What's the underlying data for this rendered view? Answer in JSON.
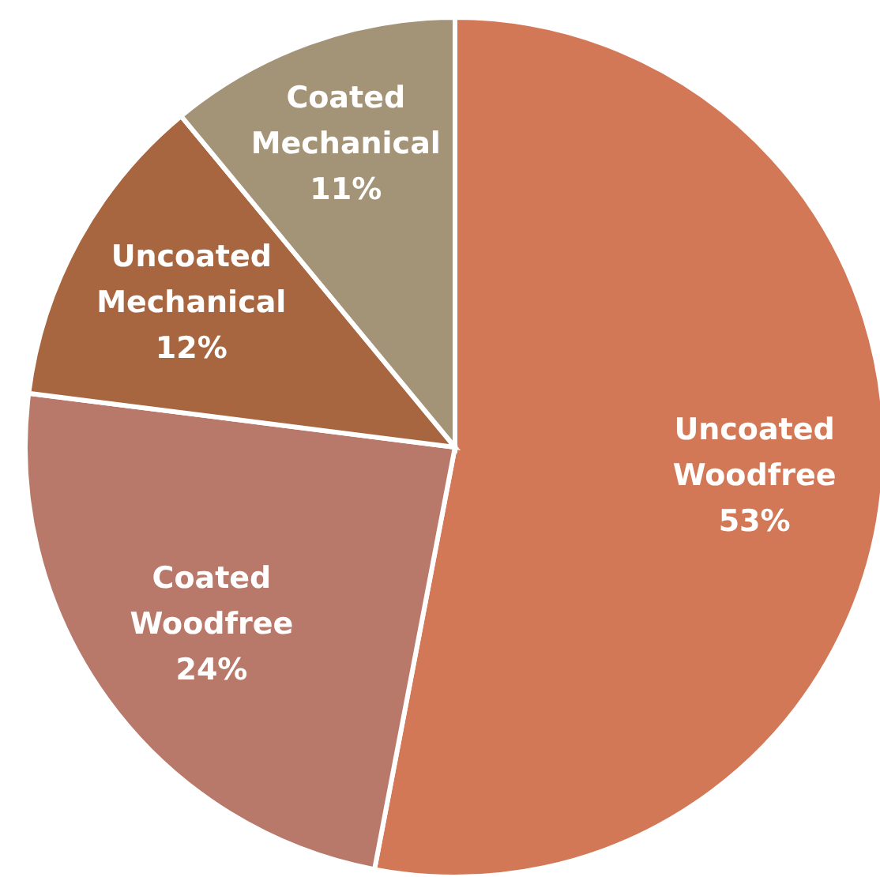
{
  "chart_data": {
    "type": "pie",
    "categories": [
      "Uncoated Woodfree",
      "Coated Woodfree",
      "Uncoated Mechanical",
      "Coated Mechanical"
    ],
    "values": [
      53,
      24,
      12,
      11
    ],
    "colors": [
      "#d27857",
      "#b8786a",
      "#a86640",
      "#a39478"
    ],
    "value_labels": [
      "53%",
      "24%",
      "12%",
      "11%"
    ]
  }
}
